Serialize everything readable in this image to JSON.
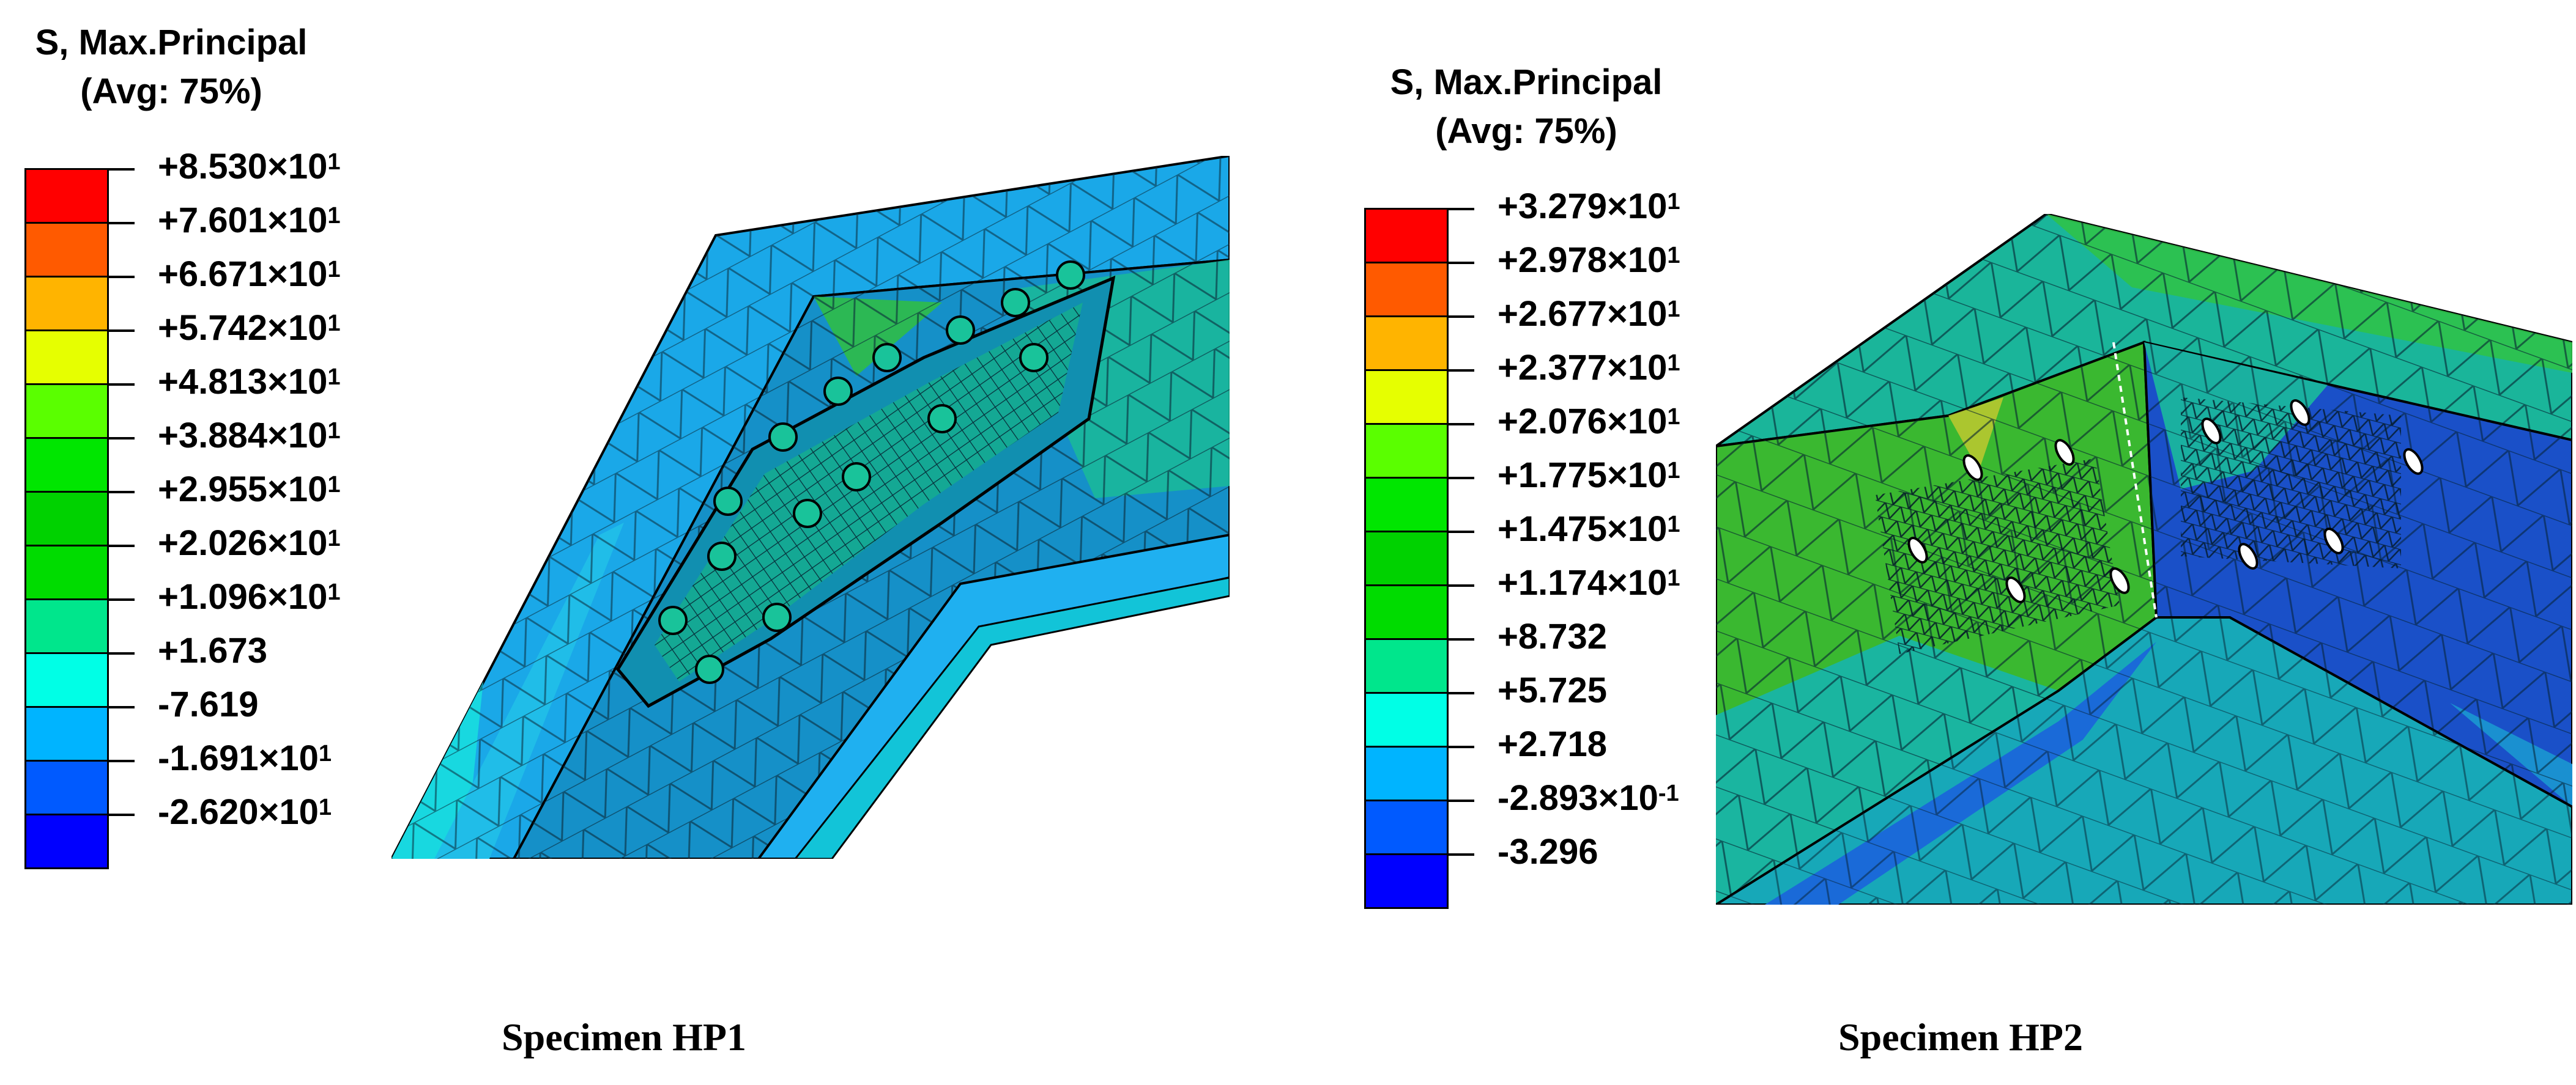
{
  "panels": [
    {
      "caption": "Specimen HP1",
      "legend": {
        "title_line1": "S, Max.Principal",
        "title_line2": "(Avg: 75%)",
        "colors": [
          "#ff0000",
          "#ff5a00",
          "#ffb400",
          "#e6ff00",
          "#5aff00",
          "#00e600",
          "#00d200",
          "#00dc00",
          "#00e68c",
          "#00ffe6",
          "#00b4ff",
          "#005aff",
          "#0000ff"
        ],
        "labels": [
          {
            "mantissa": "+8.530×10",
            "exp": "1"
          },
          {
            "mantissa": "+7.601×10",
            "exp": "1"
          },
          {
            "mantissa": "+6.671×10",
            "exp": "1"
          },
          {
            "mantissa": "+5.742×10",
            "exp": "1"
          },
          {
            "mantissa": "+4.813×10",
            "exp": "1"
          },
          {
            "mantissa": "+3.884×10",
            "exp": "1"
          },
          {
            "mantissa": "+2.955×10",
            "exp": "1"
          },
          {
            "mantissa": "+2.026×10",
            "exp": "1"
          },
          {
            "mantissa": "+1.096×10",
            "exp": "1"
          },
          {
            "mantissa": "+1.673",
            "exp": ""
          },
          {
            "mantissa": "-7.619",
            "exp": ""
          },
          {
            "mantissa": "-1.691×10",
            "exp": "1"
          },
          {
            "mantissa": "-2.620×10",
            "exp": "1"
          }
        ]
      }
    },
    {
      "caption": "Specimen HP2",
      "legend": {
        "title_line1": "S, Max.Principal",
        "title_line2": "(Avg: 75%)",
        "colors": [
          "#ff0000",
          "#ff5a00",
          "#ffb400",
          "#e6ff00",
          "#5aff00",
          "#00e600",
          "#00d200",
          "#00dc00",
          "#00e68c",
          "#00ffe6",
          "#00b4ff",
          "#005aff",
          "#0000ff"
        ],
        "labels": [
          {
            "mantissa": "+3.279×10",
            "exp": "1"
          },
          {
            "mantissa": "+2.978×10",
            "exp": "1"
          },
          {
            "mantissa": "+2.677×10",
            "exp": "1"
          },
          {
            "mantissa": "+2.377×10",
            "exp": "1"
          },
          {
            "mantissa": "+2.076×10",
            "exp": "1"
          },
          {
            "mantissa": "+1.775×10",
            "exp": "1"
          },
          {
            "mantissa": "+1.475×10",
            "exp": "1"
          },
          {
            "mantissa": "+1.174×10",
            "exp": "1"
          },
          {
            "mantissa": "+8.732",
            "exp": ""
          },
          {
            "mantissa": "+5.725",
            "exp": ""
          },
          {
            "mantissa": "+2.718",
            "exp": ""
          },
          {
            "mantissa": "-2.893×10",
            "exp": "-1"
          },
          {
            "mantissa": "-3.296",
            "exp": ""
          }
        ]
      }
    }
  ]
}
